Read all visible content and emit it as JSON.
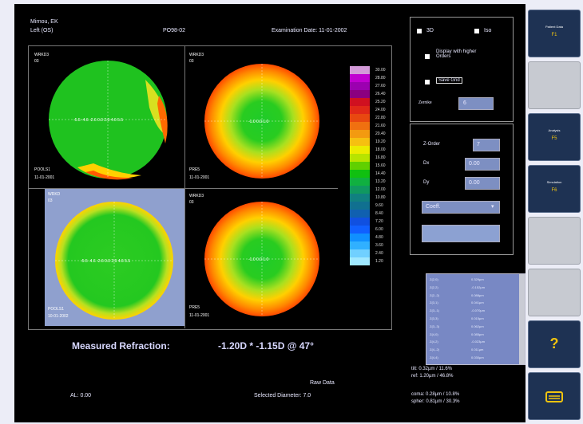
{
  "header": {
    "patient": "Mirnou, EK",
    "eye": "Left (OS)",
    "code": "PO98-02",
    "exam_date": "Examination Date: 11-01-2002"
  },
  "maps": [
    {
      "id": "top-left",
      "label_top": "WRKD3",
      "label_sub": "03",
      "bottom1": "POOLS1",
      "bottom2": "11-01-2001",
      "axis": "-5.5 -4.6 -2.6 0.0 2.6 4.6 5.5"
    },
    {
      "id": "top-right",
      "label_top": "WRKD3",
      "label_sub": "03",
      "bottom1": "PRE5",
      "bottom2": "11-01-2001",
      "axis": "-1.0 0.0 1.0"
    },
    {
      "id": "bottom-left",
      "label_top": "WRKD",
      "label_sub": "03",
      "bottom1": "POOLS1",
      "bottom2": "10-01-2002",
      "axis": "-5.5 -4.6 -2.6 0.0 2.6 4.6 5.5"
    },
    {
      "id": "bottom-right",
      "label_top": "WRKD3",
      "label_sub": "03",
      "bottom1": "PRE5",
      "bottom2": "11-01-2001",
      "axis": "-1.0 0.0 1.0"
    }
  ],
  "scale": {
    "colors": [
      "#d39ad8",
      "#c000d0",
      "#9b00b0",
      "#8b0080",
      "#d01020",
      "#e02818",
      "#e84810",
      "#f07010",
      "#f39a10",
      "#f6c010",
      "#ecec00",
      "#b7e400",
      "#60d000",
      "#10c010",
      "#10b040",
      "#109860",
      "#108080",
      "#107090",
      "#1060b0",
      "#1050e0",
      "#1060ff",
      "#1090ff",
      "#30b0ff",
      "#70d0ff",
      "#a0e8ff"
    ],
    "values": [
      "30.00",
      "28.80",
      "27.60",
      "26.40",
      "25.20",
      "24.00",
      "22.80",
      "21.60",
      "20.40",
      "19.20",
      "18.00",
      "16.80",
      "15.60",
      "14.40",
      "13.20",
      "12.00",
      "10.80",
      "9.60",
      "8.40",
      "7.20",
      "6.00",
      "4.80",
      "3.60",
      "2.40",
      "1.20"
    ]
  },
  "refraction": {
    "label": "Measured Refraction:",
    "value": "-1.20D * -1.15D @ 47°"
  },
  "footer": {
    "al": "AL: 0.00",
    "raw": "Raw Data",
    "diameter": "Selected Diameter: 7.0"
  },
  "options": {
    "opt1_label": "3D",
    "opt2_label": "Iso",
    "opt3_label": "Display with higher Orders",
    "opt4_label": "Save Grid",
    "zernike_label": "Zernike",
    "zernike_value": "6"
  },
  "params": {
    "p1_label": "Z-Order",
    "p1_value": "7",
    "p2_label": "Dx",
    "p2_value": "0.00",
    "p3_label": "Dy",
    "p3_value": "0.00",
    "dropdown_value": "Coeff.",
    "action_label": ""
  },
  "list": {
    "rows": [
      [
        "Z(2,0)",
        "0.329µm"
      ],
      [
        "Z(2,2)",
        "-0.152µm"
      ],
      [
        "Z(2,-2)",
        "0.088µm"
      ],
      [
        "Z(3,1)",
        "0.041µm"
      ],
      [
        "Z(3,-1)",
        "-0.070µm"
      ],
      [
        "Z(3,3)",
        "0.015µm"
      ],
      [
        "Z(3,-3)",
        "0.062µm"
      ],
      [
        "Z(4,0)",
        "0.085µm"
      ],
      [
        "Z(4,2)",
        "-0.023µm"
      ],
      [
        "Z(4,-2)",
        "0.011µm"
      ],
      [
        "Z(4,4)",
        "0.030µm"
      ]
    ]
  },
  "stats": {
    "tilt": "tilt: 0.32µm / 11.6%",
    "ref": "ref: 1.20µm / 46.8%",
    "coma": "coma: 0.28µm / 10.8%",
    "spher": "spher: 0.81µm / 30.3%"
  },
  "sidebar": {
    "btn1_title": "Patient Data",
    "btn1_value": "F1",
    "btn3_title": "Analysis",
    "btn3_value": "F5",
    "btn4_title": "Simulation",
    "btn4_value": "F6",
    "help_glyph": "?"
  }
}
